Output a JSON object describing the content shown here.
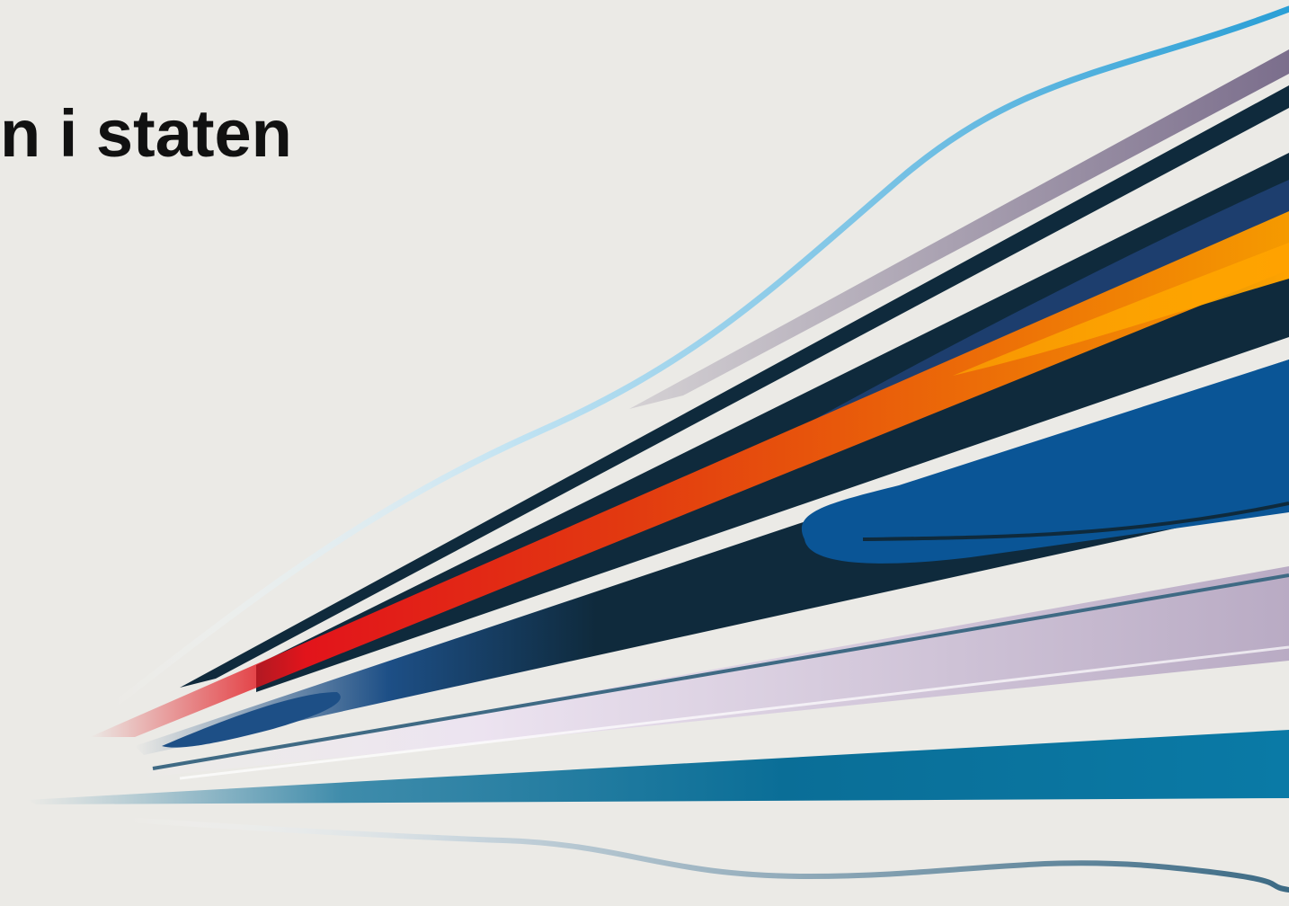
{
  "title": "n i staten",
  "palette": {
    "background": "#ebeae6",
    "title_text": "#111111",
    "sky_blue": "#3ba6d8",
    "mauve": "#7b6e8c",
    "navy": "#0f2a3c",
    "dark_blue": "#1d3e6e",
    "orange": "#f08a00",
    "red": "#e2141b",
    "royal_blue": "#0a5596",
    "lavender": "#c9bfd3",
    "teal": "#0a7aa6"
  }
}
